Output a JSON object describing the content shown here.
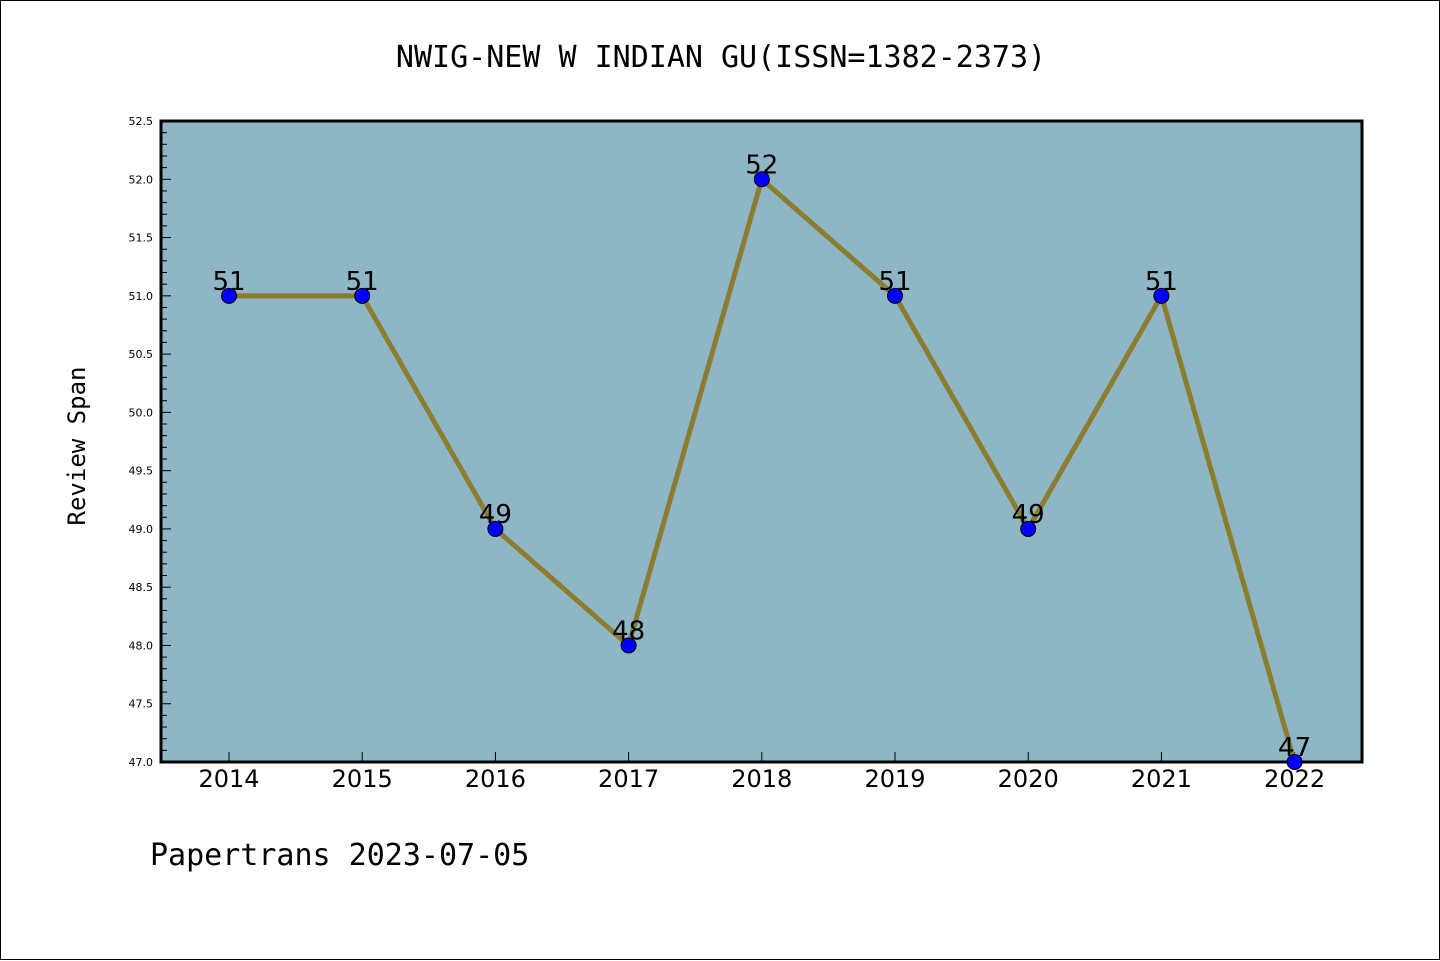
{
  "chart_data": {
    "type": "line",
    "title": "NWIG-NEW W INDIAN GU(ISSN=1382-2373)",
    "ylabel": "Review Span",
    "xlabel": "",
    "categories": [
      "2014",
      "2015",
      "2016",
      "2017",
      "2018",
      "2019",
      "2020",
      "2021",
      "2022"
    ],
    "series": [
      {
        "values": [
          51,
          51,
          49,
          48,
          52,
          51,
          49,
          51,
          47
        ]
      }
    ],
    "data_labels": [
      "51",
      "51",
      "49",
      "48",
      "52",
      "51",
      "49",
      "51",
      "47"
    ],
    "ylim": [
      47.0,
      52.5
    ],
    "yticks": [
      "47.0",
      "47.5",
      "48.0",
      "48.5",
      "49.0",
      "49.5",
      "50.0",
      "50.5",
      "51.0",
      "51.5",
      "52.0",
      "52.5"
    ],
    "grid": false,
    "legend": "none",
    "colors": {
      "plot_background": "#8fb6c4",
      "line": "#8b7d2f",
      "marker": "#0000ff"
    }
  },
  "footer": {
    "text": "Papertrans 2023-07-05"
  }
}
